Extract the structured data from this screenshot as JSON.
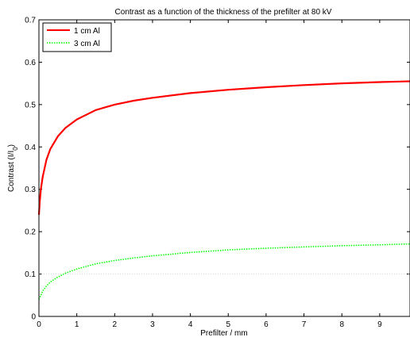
{
  "chart_data": {
    "type": "line",
    "title": "Contrast as a function of the thickness of the prefilter at 80 kV",
    "xlabel": "Prefilter / mm",
    "ylabel": "Contrast (I/I",
    "ylabel_subscript": "0",
    "ylabel_close": ")",
    "xlim": [
      0,
      9.8
    ],
    "ylim": [
      0,
      0.7
    ],
    "xticks": [
      "0",
      "1",
      "2",
      "3",
      "4",
      "5",
      "6",
      "7",
      "8",
      "9"
    ],
    "yticks": [
      "0",
      "0.1",
      "0.2",
      "0.3",
      "0.4",
      "0.5",
      "0.6",
      "0.7"
    ],
    "grid": false,
    "legend_position": "top-left",
    "series": [
      {
        "name": "1 cm Al",
        "color": "#ff0000",
        "style": "solid",
        "x": [
          0,
          0.02,
          0.05,
          0.1,
          0.2,
          0.3,
          0.5,
          0.7,
          1.0,
          1.5,
          2.0,
          2.5,
          3.0,
          4.0,
          5.0,
          6.0,
          7.0,
          8.0,
          9.0,
          9.8
        ],
        "y": [
          0.24,
          0.27,
          0.3,
          0.33,
          0.37,
          0.395,
          0.425,
          0.445,
          0.465,
          0.487,
          0.5,
          0.509,
          0.516,
          0.527,
          0.535,
          0.541,
          0.546,
          0.55,
          0.553,
          0.555
        ]
      },
      {
        "name": "3 cm Al",
        "color": "#00ff00",
        "style": "dotted",
        "x": [
          0,
          0.05,
          0.1,
          0.2,
          0.3,
          0.5,
          0.7,
          1.0,
          1.5,
          2.0,
          2.5,
          3.0,
          4.0,
          5.0,
          6.0,
          7.0,
          8.0,
          9.0,
          9.8
        ],
        "y": [
          0.04,
          0.05,
          0.06,
          0.072,
          0.081,
          0.093,
          0.102,
          0.112,
          0.124,
          0.132,
          0.138,
          0.143,
          0.151,
          0.157,
          0.161,
          0.164,
          0.167,
          0.169,
          0.171
        ]
      }
    ]
  }
}
